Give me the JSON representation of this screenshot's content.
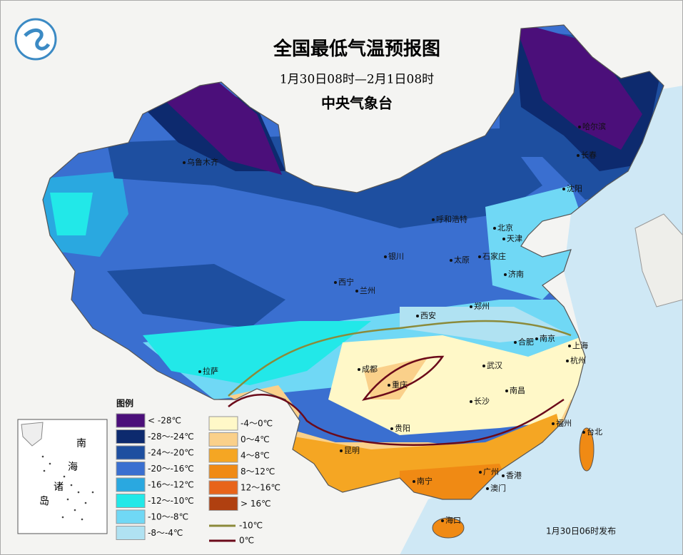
{
  "header": {
    "title": "全国最低气温预报图",
    "subtitle": "1月30日08时—2月1日08时",
    "issuer": "中央气象台"
  },
  "cities": [
    "乌鲁木齐",
    "哈尔滨",
    "长春",
    "沈阳",
    "呼和浩特",
    "北京",
    "天津",
    "银川",
    "太原",
    "石家庄",
    "济南",
    "西宁",
    "兰州",
    "西安",
    "郑州",
    "合肥",
    "南京",
    "上海",
    "拉萨",
    "成都",
    "重庆",
    "武汉",
    "杭州",
    "南昌",
    "长沙",
    "贵阳",
    "福州",
    "台北",
    "昆明",
    "南宁",
    "广州",
    "香港",
    "澳门",
    "海口"
  ],
  "legend": {
    "title": "图例",
    "items": [
      {
        "label": "< -28℃",
        "color": "#4b0f7a"
      },
      {
        "label": "-28～-24℃",
        "color": "#0d2a6e"
      },
      {
        "label": "-24～-20℃",
        "color": "#1e4fa0"
      },
      {
        "label": "-20～-16℃",
        "color": "#3a6fd0"
      },
      {
        "label": "-16～-12℃",
        "color": "#2aa8e0"
      },
      {
        "label": "-12～-10℃",
        "color": "#22e8e8"
      },
      {
        "label": "-10～-8℃",
        "color": "#70d8f5"
      },
      {
        "label": "-8～-4℃",
        "color": "#b0e2f2"
      },
      {
        "label": "-4～0℃",
        "color": "#fff8c8"
      },
      {
        "label": "0～4℃",
        "color": "#fad08a"
      },
      {
        "label": "4～8℃",
        "color": "#f5a623"
      },
      {
        "label": "8～12℃",
        "color": "#f08a14"
      },
      {
        "label": "12～16℃",
        "color": "#e8641a"
      },
      {
        "label": "> 16℃",
        "color": "#b04010"
      }
    ],
    "lines": [
      {
        "label": "-10℃",
        "color": "#8b8a3a"
      },
      {
        "label": "0℃",
        "color": "#6b0a1a"
      }
    ]
  },
  "inset": {
    "labels": [
      "南",
      "海",
      "诸",
      "岛"
    ]
  },
  "footer": "1月30日06时发布"
}
